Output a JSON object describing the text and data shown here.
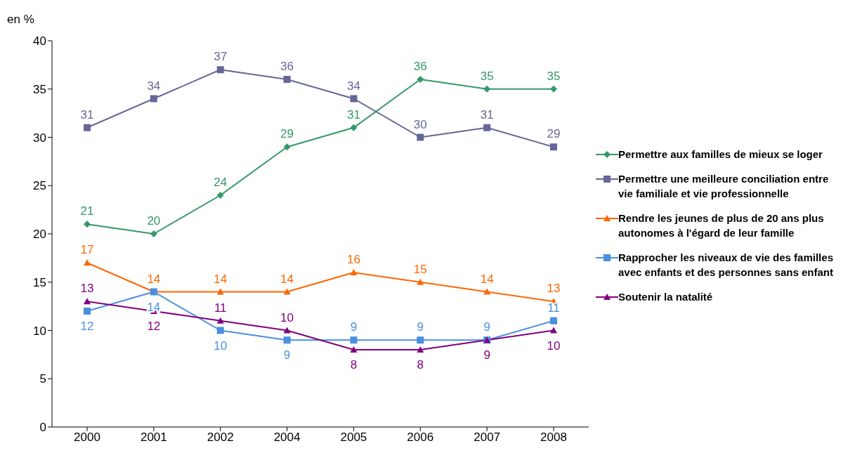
{
  "chart_data": {
    "type": "line",
    "ylabel": "en %",
    "categories": [
      "2000",
      "2001",
      "2002",
      "2004",
      "2005",
      "2006",
      "2007",
      "2008"
    ],
    "series": [
      {
        "name": "Permettre aux familles de mieux se loger",
        "color": "#339966",
        "marker": "diamond",
        "values": [
          21,
          20,
          24,
          29,
          31,
          36,
          35,
          35
        ]
      },
      {
        "name": "Permettre une meilleure conciliation entre vie familiale et vie professionnelle",
        "color": "#666699",
        "marker": "square",
        "values": [
          31,
          34,
          37,
          36,
          34,
          30,
          31,
          29
        ]
      },
      {
        "name": "Rendre les jeunes de plus de 20 ans plus autonomes à l'égard de leur famille",
        "color": "#ff6600",
        "marker": "triangle",
        "values": [
          17,
          14,
          14,
          14,
          16,
          15,
          14,
          13
        ]
      },
      {
        "name": "Rapprocher les niveaux de vie des familles avec enfants et des personnes sans enfant",
        "color": "#4a8fe0",
        "marker": "square",
        "values": [
          12,
          14,
          10,
          9,
          9,
          9,
          9,
          11
        ]
      },
      {
        "name": "Soutenir la natalité",
        "color": "#800080",
        "marker": "triangle",
        "values": [
          13,
          12,
          11,
          10,
          8,
          8,
          9,
          10
        ]
      }
    ],
    "ylim": [
      0,
      40
    ],
    "yticks": [
      0,
      5,
      10,
      15,
      20,
      25,
      30,
      35,
      40
    ],
    "grid": false,
    "legend": "right",
    "data_labels": true
  }
}
